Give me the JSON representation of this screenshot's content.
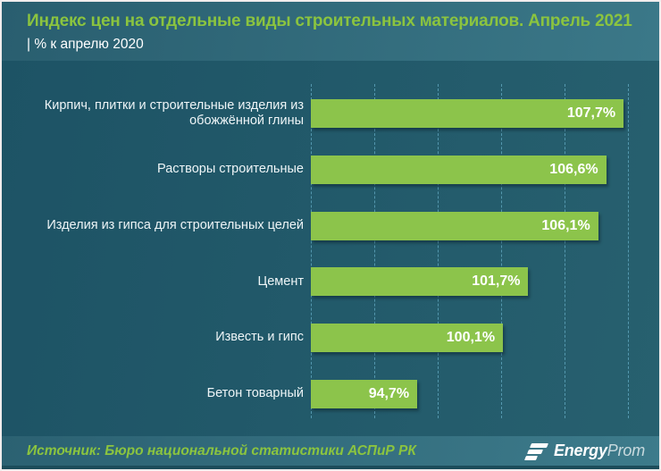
{
  "header": {
    "title": "Индекс цен на отдельные виды строительных материалов. Апрель 2021",
    "subtitle": "| % к апрелю 2020"
  },
  "chart_data": {
    "type": "bar",
    "orientation": "horizontal",
    "title": "Индекс цен на отдельные виды строительных материалов. Апрель 2021",
    "subtitle": "| % к апрелю 2020",
    "unit": "% к апрелю 2020",
    "categories": [
      "Кирпич, плитки и строительные изделия из обожжённой глины",
      "Растворы строительные",
      "Изделия из гипса для строительных целей",
      "Цемент",
      "Известь и гипс",
      "Бетон товарный"
    ],
    "values": [
      107.7,
      106.6,
      106.1,
      101.7,
      100.1,
      94.7
    ],
    "value_labels": [
      "107,7%",
      "106,6%",
      "106,1%",
      "101,7%",
      "100,1%",
      "94,7%"
    ],
    "xlim": [
      88,
      109.1
    ],
    "gridline_values": [
      88,
      92,
      96,
      100,
      104,
      108
    ],
    "grid_on": true,
    "legend_position": "none",
    "data_label_position": "inside-end",
    "bar_color": "#8cc44b"
  },
  "footer": {
    "source": "Источник: Бюро национальной статистики АСПиР РК",
    "logo": {
      "energy": "Energy",
      "prom": "Prom"
    }
  },
  "colors": {
    "accent_green": "#8bc43f",
    "bar_green": "#8cc44b",
    "band_teal_left": "#295e6f",
    "band_teal_right": "#3d7b8b",
    "plot_bg": "#1d5365",
    "gridline": "#6eb9d2",
    "bottom_strip": "#1c4c5a",
    "text_white": "#ffffff"
  }
}
